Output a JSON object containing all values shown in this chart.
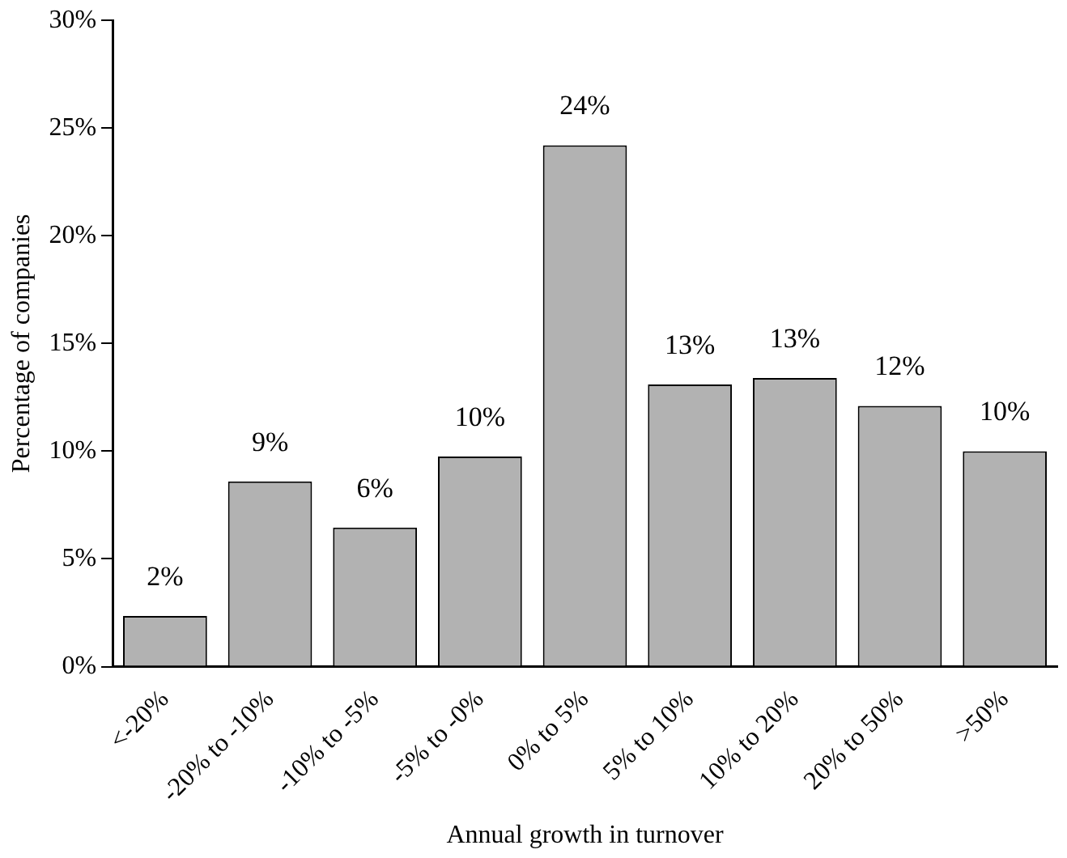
{
  "chart_data": {
    "type": "bar",
    "categories": [
      "<-20%",
      "-20% to -10%",
      "-10% to -5%",
      "-5% to -0%",
      "0% to 5%",
      "5% to 10%",
      "10% to 20%",
      "20% to 50%",
      ">50%"
    ],
    "values": [
      2.35,
      8.6,
      6.45,
      9.75,
      24.2,
      13.1,
      13.4,
      12.1,
      10.0
    ],
    "value_labels": [
      "2%",
      "9%",
      "6%",
      "10%",
      "24%",
      "13%",
      "13%",
      "12%",
      "10%"
    ],
    "color": "#b2b2b2",
    "xlabel": "Annual growth in turnover",
    "ylabel": "Percentage of companies",
    "ylim": [
      0,
      30
    ],
    "yticks": [
      {
        "value": 0,
        "label": "0%"
      },
      {
        "value": 5,
        "label": "5%"
      },
      {
        "value": 10,
        "label": "10%"
      },
      {
        "value": 15,
        "label": "15%"
      },
      {
        "value": 20,
        "label": "20%"
      },
      {
        "value": 25,
        "label": "25%"
      },
      {
        "value": 30,
        "label": "30%"
      }
    ],
    "grid": false,
    "legend": false
  }
}
